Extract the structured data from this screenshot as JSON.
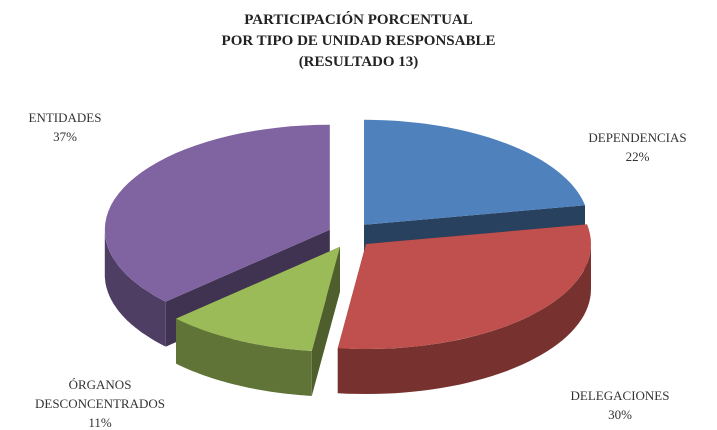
{
  "chart_data": {
    "type": "pie3d",
    "title_lines": [
      "PARTICIPACIÓN PORCENTUAL",
      "POR TIPO DE UNIDAD RESPONSABLE",
      "(RESULTADO 13)"
    ],
    "categories": [
      "DEPENDENCIAS",
      "DELEGACIONES",
      "ÓRGANOS DESCONCENTRADOS",
      "ENTIDADES"
    ],
    "values": [
      22,
      30,
      11,
      37
    ],
    "value_labels": [
      "22%",
      "30%",
      "11%",
      "37%"
    ],
    "colors": [
      "#4f81bd",
      "#c0504d",
      "#9bbb59",
      "#8064a2"
    ]
  }
}
